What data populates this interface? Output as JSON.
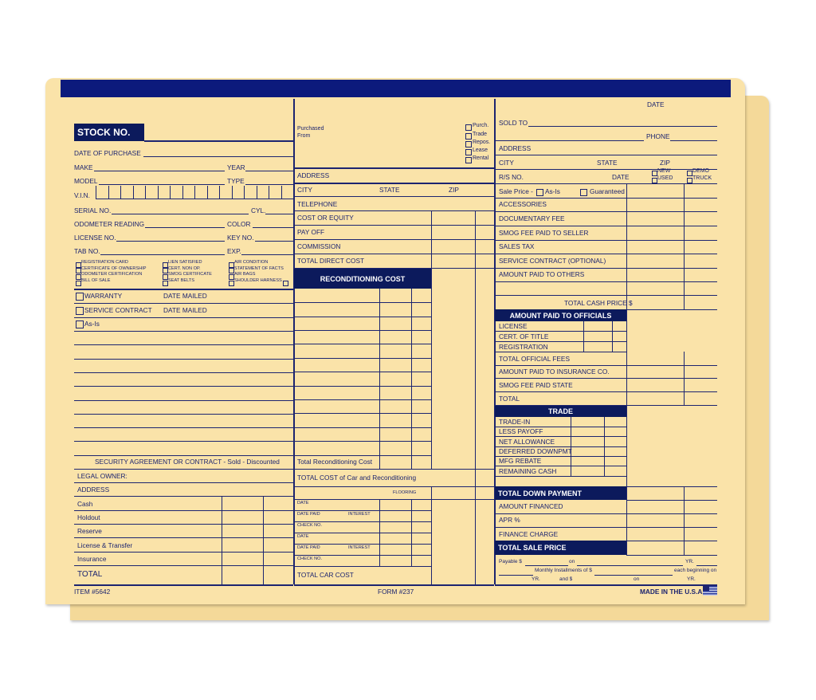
{
  "colors": {
    "navy": "#0c1a5c",
    "paper": "#fae3a9",
    "ink": "#1c2470"
  },
  "left": {
    "stock_no": "STOCK NO.",
    "date_of_purchase": "DATE OF PURCHASE",
    "make": "MAKE",
    "year": "YEAR",
    "model": "MODEL",
    "type": "TYPE",
    "vin": "V.I.N.",
    "serial_no": "SERIAL NO.",
    "cyl": "CYL.",
    "odometer": "ODOMETER READING",
    "color": "COLOR",
    "license_no": "LICENSE NO.",
    "key_no": "KEY NO.",
    "tab_no": "TAB NO.",
    "exp": "EXP.",
    "checklist": [
      "REGISTRATION CARD",
      "CERTIFICATE OF OWNERSHIP",
      "ODOMETER CERTIFICATION",
      "BILL OF SALE",
      "LIEN SATISFIED",
      "CERT. NON OP.",
      "SMOG CERTIFICATE",
      "SEAT BELTS",
      "AIR CONDITION",
      "STATEMENT OF FACTS",
      "AIR BAGS",
      "SHOULDER HARNESS"
    ],
    "warranty": "WARRANTY",
    "date_mailed": "DATE MAILED",
    "service_contract": "SERVICE CONTRACT",
    "as_is": "As-Is",
    "security": "SECURITY AGREEMENT OR CONTRACT - Sold - Discounted",
    "legal_owner": "LEGAL OWNER:",
    "address": "ADDRESS",
    "payments": [
      "Cash",
      "Holdout",
      "Reserve",
      "License & Transfer",
      "Insurance"
    ],
    "total": "TOTAL",
    "item": "ITEM #5642"
  },
  "middle": {
    "purchased_from": [
      "Purchased",
      "From"
    ],
    "purchase_types": [
      "Purch.",
      "Trade",
      "Repos.",
      "Lease",
      "Rental"
    ],
    "address": "ADDRESS",
    "city": "CITY",
    "state": "STATE",
    "zip": "ZIP",
    "telephone": "TELEPHONE",
    "cost_or_equity": "COST OR EQUITY",
    "pay_off": "PAY OFF",
    "commission": "COMMISSION",
    "total_direct_cost": "TOTAL DIRECT COST",
    "reconditioning_cost": "RECONDITIONING COST",
    "total_reconditioning": "Total Reconditioning Cost",
    "total_cost": "TOTAL COST of Car and Reconditioning",
    "flooring": "FLOORING",
    "date": "DATE",
    "date_paid": "DATE PAID",
    "interest": "INTEREST",
    "check_no": "CHECK NO.",
    "total_car_cost": "TOTAL CAR COST",
    "form": "FORM #237"
  },
  "right": {
    "date": "DATE",
    "sold_to": "SOLD TO",
    "phone": "PHONE",
    "address": "ADDRESS",
    "city": "CITY",
    "state": "STATE",
    "zip": "ZIP",
    "rs_no": "R/S NO.",
    "rs_date": "DATE",
    "new": "NEW",
    "used": "USED",
    "demo": "DEMO",
    "truck": "TRUCK",
    "sale_price": "Sale Price -",
    "as_is": "As-Is",
    "guaranteed": "Guaranteed",
    "price_items": [
      "ACCESSORIES",
      "DOCUMENTARY FEE",
      "SMOG FEE PAID TO SELLER",
      "SALES TAX",
      "SERVICE CONTRACT (OPTIONAL)",
      "AMOUNT PAID TO OTHERS"
    ],
    "total_cash_price": "TOTAL CASH PRICE $",
    "officials": "AMOUNT PAID TO OFFICIALS",
    "official_items": [
      "LICENSE",
      "CERT. OF TITLE",
      "REGISTRATION"
    ],
    "fee_items": [
      "TOTAL OFFICIAL FEES",
      "AMOUNT PAID TO INSURANCE CO.",
      "SMOG FEE PAID STATE",
      "TOTAL"
    ],
    "trade": "TRADE",
    "trade_items": [
      "TRADE-IN",
      "LESS PAYOFF",
      "NET ALLOWANCE",
      "DEFERRED DOWNPMT",
      "MFG REBATE",
      "REMAINING CASH"
    ],
    "total_down_payment": "TOTAL DOWN PAYMENT",
    "amount_financed": "AMOUNT FINANCED",
    "apr": "APR %",
    "finance_charge": "FINANCE CHARGE",
    "total_sale_price": "TOTAL SALE PRICE",
    "payable": "Payable $",
    "on": "on",
    "yr": "YR.",
    "monthly": "Monthly Installments of $",
    "each_beginning": "each beginning on",
    "and": "and $",
    "made_in_usa": "MADE IN THE U.S.A."
  }
}
